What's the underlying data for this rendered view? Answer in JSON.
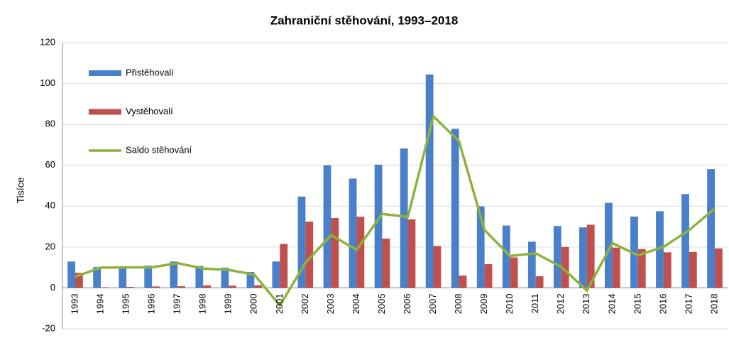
{
  "chart_data": {
    "type": "bar_line",
    "title": "Zahraniční stěhování, 1993–2018",
    "y_label": "Tisíce",
    "categories": [
      "1993",
      "1994",
      "1995",
      "1996",
      "1997",
      "1998",
      "1999",
      "2000",
      "2001",
      "2002",
      "2003",
      "2004",
      "2005",
      "2006",
      "2007",
      "2008",
      "2009",
      "2010",
      "2011",
      "2012",
      "2013",
      "2014",
      "2015",
      "2016",
      "2017",
      "2018"
    ],
    "series": [
      {
        "name": "Přistěhovalí",
        "type": "bar",
        "color": "#4a7fc9",
        "values": [
          12.9,
          10.2,
          10.5,
          10.9,
          12.9,
          10.7,
          9.9,
          7.8,
          12.9,
          44.7,
          60.0,
          53.5,
          60.3,
          68.2,
          104.4,
          77.8,
          39.9,
          30.5,
          22.6,
          30.3,
          29.6,
          41.6,
          34.9,
          37.5,
          45.9,
          58.1
        ]
      },
      {
        "name": "Vystěhovalí",
        "type": "bar",
        "color": "#c0504d",
        "values": [
          7.4,
          0.3,
          0.5,
          0.7,
          0.8,
          1.2,
          1.1,
          1.3,
          21.5,
          32.4,
          34.2,
          34.8,
          24.1,
          33.5,
          20.5,
          6.0,
          11.6,
          14.9,
          5.7,
          20.0,
          30.9,
          19.7,
          19.0,
          17.4,
          17.6,
          19.3
        ]
      },
      {
        "name": "Saldo stěhování",
        "type": "line",
        "color": "#8db33c",
        "values": [
          5.5,
          9.9,
          10.0,
          10.1,
          12.1,
          9.5,
          8.8,
          6.5,
          -8.6,
          12.3,
          25.8,
          18.6,
          36.2,
          34.7,
          83.9,
          71.8,
          28.3,
          15.6,
          16.9,
          10.3,
          -1.3,
          21.9,
          15.9,
          20.1,
          28.3,
          38.8
        ]
      }
    ],
    "ylim": [
      -20,
      120
    ],
    "yticks": [
      -20,
      0,
      20,
      40,
      60,
      80,
      100,
      120
    ],
    "grid": true,
    "legend": "upper-left"
  }
}
